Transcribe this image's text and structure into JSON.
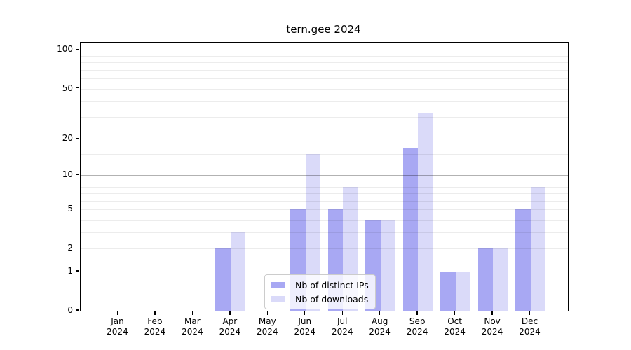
{
  "title": "tern.gee 2024",
  "legend": {
    "items": [
      {
        "label": "Nb of distinct IPs",
        "color": "#a8a8f3"
      },
      {
        "label": "Nb of downloads",
        "color": "#dadaf9"
      }
    ]
  },
  "chart_data": {
    "type": "bar",
    "title": "tern.gee 2024",
    "categories": [
      "Jan 2024",
      "Feb 2024",
      "Mar 2024",
      "Apr 2024",
      "May 2024",
      "Jun 2024",
      "Jul 2024",
      "Aug 2024",
      "Sep 2024",
      "Oct 2024",
      "Nov 2024",
      "Dec 2024"
    ],
    "x_tick_months": [
      "Jan",
      "Feb",
      "Mar",
      "Apr",
      "May",
      "Jun",
      "Jul",
      "Aug",
      "Sep",
      "Oct",
      "Nov",
      "Dec"
    ],
    "x_tick_year": "2024",
    "series": [
      {
        "name": "Nb of distinct IPs",
        "color": "#a8a8f3",
        "values": [
          0,
          0,
          0,
          2,
          0,
          5,
          5,
          4,
          17,
          1,
          2,
          5
        ]
      },
      {
        "name": "Nb of downloads",
        "color": "#dadaf9",
        "values": [
          0,
          0,
          0,
          3,
          0,
          15,
          8,
          4,
          32,
          1,
          2,
          8
        ]
      }
    ],
    "xlabel": "",
    "ylabel": "",
    "yscale": "log1p",
    "ylim": [
      0,
      114
    ],
    "y_ticks": [
      0,
      1,
      2,
      5,
      10,
      20,
      50,
      100
    ],
    "y_major_gridlines": [
      1,
      10,
      100
    ],
    "y_minor_gridlines": [
      2,
      3,
      4,
      5,
      6,
      7,
      8,
      9,
      15,
      20,
      30,
      40,
      50,
      60,
      70,
      80,
      90
    ],
    "grid": true,
    "legend_position": "lower center"
  }
}
